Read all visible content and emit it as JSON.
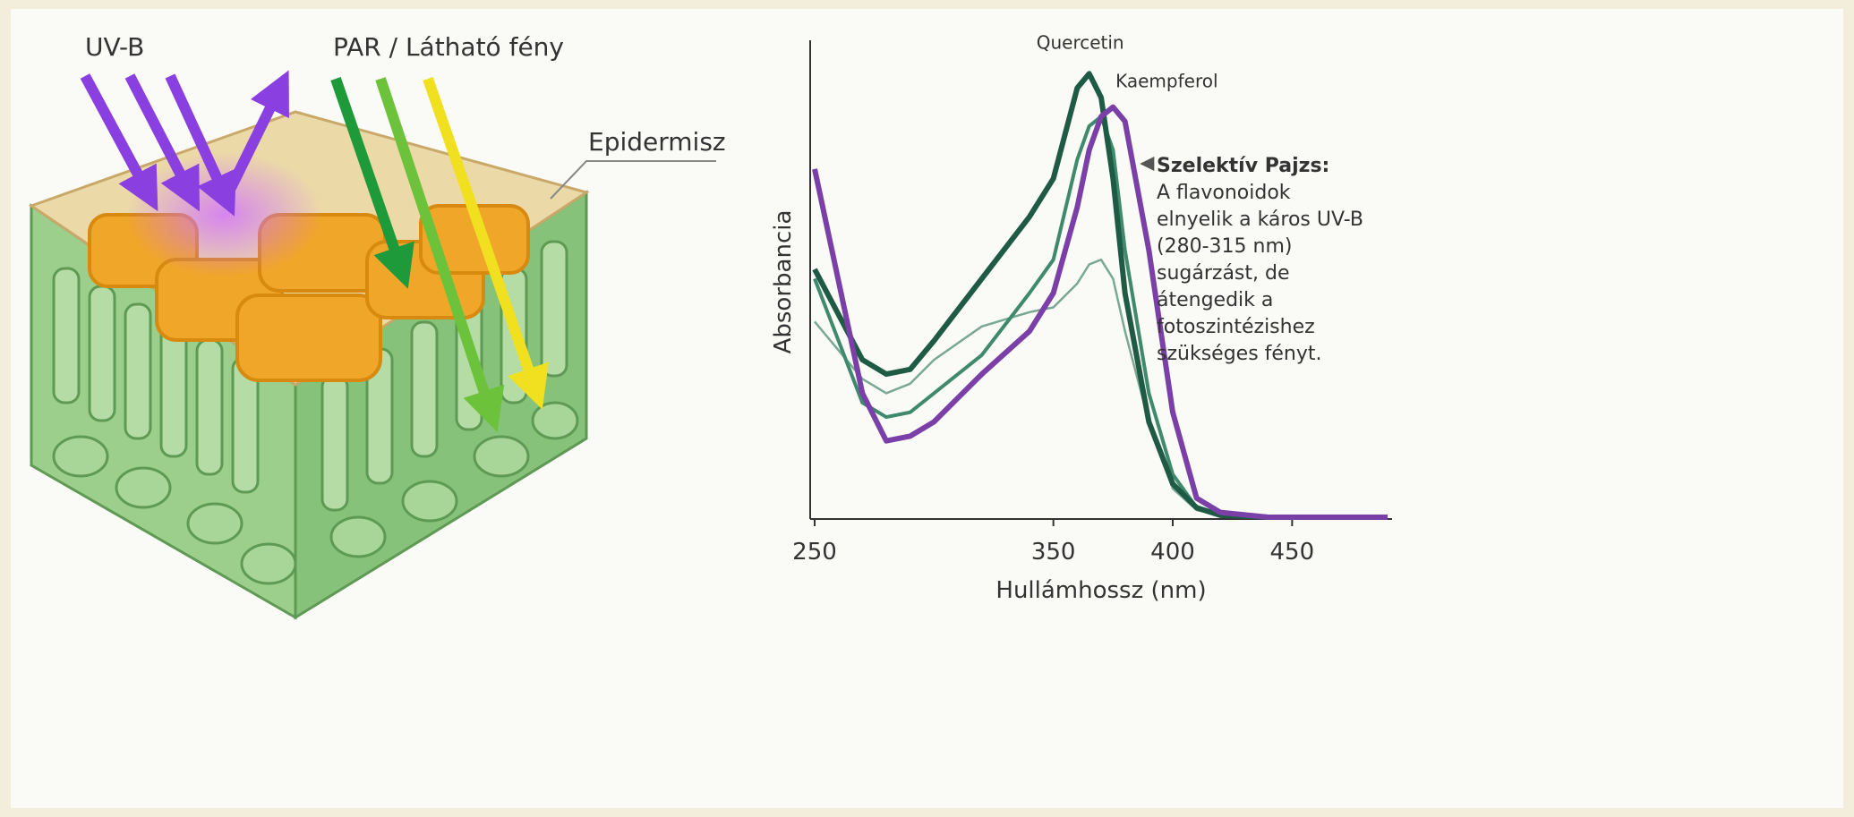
{
  "illustration": {
    "uv_label": "UV-B",
    "par_label": "PAR / Látható fény",
    "epidermis_label": "Epidermisz"
  },
  "chart_data": {
    "type": "line",
    "x": [
      250,
      270,
      280,
      290,
      300,
      320,
      340,
      350,
      360,
      365,
      370,
      375,
      380,
      390,
      400,
      410,
      420,
      440,
      490
    ],
    "series": [
      {
        "name": "Quercetin",
        "color": "#1f5a45",
        "values": [
          0.52,
          0.33,
          0.3,
          0.31,
          0.37,
          0.5,
          0.63,
          0.71,
          0.9,
          0.93,
          0.88,
          0.71,
          0.47,
          0.2,
          0.07,
          0.02,
          0.004,
          0,
          0
        ]
      },
      {
        "name": "Kaempferol",
        "color": "#7b3fa8",
        "values": [
          0.73,
          0.26,
          0.16,
          0.17,
          0.2,
          0.3,
          0.39,
          0.47,
          0.65,
          0.77,
          0.84,
          0.86,
          0.83,
          0.56,
          0.22,
          0.04,
          0.01,
          0,
          0
        ]
      },
      {
        "color": "#3f8a6c",
        "values": [
          0.5,
          0.24,
          0.21,
          0.22,
          0.26,
          0.34,
          0.47,
          0.54,
          0.75,
          0.82,
          0.84,
          0.77,
          0.56,
          0.26,
          0.09,
          0.02,
          0.005,
          0,
          0
        ]
      },
      {
        "color": "#7aa893",
        "values": [
          0.41,
          0.29,
          0.26,
          0.28,
          0.33,
          0.4,
          0.43,
          0.44,
          0.49,
          0.53,
          0.54,
          0.5,
          0.39,
          0.2,
          0.06,
          0.015,
          0.004,
          0,
          0
        ]
      }
    ],
    "xlim": [
      250,
      490
    ],
    "xticks": [
      250,
      350,
      400,
      450
    ],
    "ylim": [
      0,
      1
    ],
    "xlabel": "Hullámhossz (nm)",
    "ylabel": "Absorbancia",
    "annotation": {
      "title": "Szelektív Pajzs:",
      "lines": [
        "A flavonoidok",
        "elnyelik a káros UV-B",
        "(280-315 nm)",
        "sugárzást, de",
        "átengedik a",
        "fotoszintézishez",
        "szükséges fényt."
      ]
    }
  }
}
